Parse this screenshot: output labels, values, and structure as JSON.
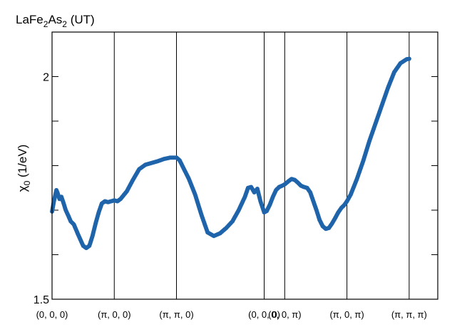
{
  "chart_data": {
    "type": "scatter",
    "title_main": "LaFe",
    "title_sub1": "2",
    "title_mid": "As",
    "title_sub2": "2",
    "title_tail": " (UT)",
    "ylabel_main": "χ",
    "ylabel_sub": "0",
    "ylabel_tail": " (1/eV)",
    "ylim": [
      1.5,
      2.1
    ],
    "yticks": [
      {
        "value": 1.5,
        "label": "1.5"
      },
      {
        "value": 1.6,
        "label": ""
      },
      {
        "value": 1.7,
        "label": ""
      },
      {
        "value": 1.8,
        "label": ""
      },
      {
        "value": 1.9,
        "label": ""
      },
      {
        "value": 2.0,
        "label": "2"
      }
    ],
    "xlim": [
      0,
      6.2
    ],
    "kpoints": [
      {
        "x": 0.0,
        "label": "(0, 0, 0)"
      },
      {
        "x": 1.0,
        "label": "(π, 0, 0)"
      },
      {
        "x": 2.0,
        "label": "(π, π, 0)"
      },
      {
        "x": 3.41,
        "label": "(0, 0, 0)"
      },
      {
        "x": 3.74,
        "label": "(0, 0, π)"
      },
      {
        "x": 4.74,
        "label": "(π, 0, π)"
      },
      {
        "x": 5.74,
        "label": "(π, π, π)"
      }
    ],
    "series": [
      {
        "color": "#1f64aa",
        "x": [
          0.0,
          0.03,
          0.07,
          0.09,
          0.12,
          0.15,
          0.18,
          0.22,
          0.26,
          0.3,
          0.35,
          0.42,
          0.5,
          0.55,
          0.6,
          0.65,
          0.7,
          0.75,
          0.8,
          0.85,
          0.9,
          0.95,
          1.0,
          1.05,
          1.1,
          1.2,
          1.3,
          1.4,
          1.5,
          1.6,
          1.7,
          1.8,
          1.9,
          2.0,
          2.05,
          2.1,
          2.2,
          2.3,
          2.4,
          2.5,
          2.6,
          2.7,
          2.8,
          2.9,
          3.0,
          3.1,
          3.15,
          3.2,
          3.25,
          3.3,
          3.35,
          3.41,
          3.45,
          3.5,
          3.55,
          3.6,
          3.65,
          3.7,
          3.74,
          3.8,
          3.85,
          3.9,
          3.95,
          4.0,
          4.05,
          4.1,
          4.15,
          4.2,
          4.25,
          4.3,
          4.35,
          4.4,
          4.45,
          4.5,
          4.55,
          4.6,
          4.65,
          4.7,
          4.74,
          4.8,
          4.9,
          5.0,
          5.1,
          5.2,
          5.3,
          5.4,
          5.5,
          5.6,
          5.7,
          5.74
        ],
        "y": [
          1.697,
          1.72,
          1.745,
          1.738,
          1.725,
          1.73,
          1.718,
          1.7,
          1.688,
          1.675,
          1.668,
          1.645,
          1.62,
          1.615,
          1.62,
          1.642,
          1.67,
          1.695,
          1.715,
          1.72,
          1.718,
          1.72,
          1.722,
          1.72,
          1.725,
          1.742,
          1.768,
          1.792,
          1.802,
          1.806,
          1.81,
          1.815,
          1.818,
          1.818,
          1.812,
          1.798,
          1.77,
          1.735,
          1.69,
          1.65,
          1.642,
          1.648,
          1.66,
          1.675,
          1.7,
          1.73,
          1.75,
          1.752,
          1.74,
          1.748,
          1.72,
          1.695,
          1.698,
          1.712,
          1.73,
          1.745,
          1.752,
          1.755,
          1.758,
          1.765,
          1.77,
          1.768,
          1.762,
          1.755,
          1.752,
          1.75,
          1.74,
          1.72,
          1.7,
          1.678,
          1.664,
          1.658,
          1.66,
          1.67,
          1.682,
          1.695,
          1.705,
          1.712,
          1.72,
          1.735,
          1.77,
          1.81,
          1.855,
          1.895,
          1.935,
          1.975,
          2.01,
          2.03,
          2.039,
          2.04
        ]
      }
    ],
    "grid": false,
    "legend": "none"
  }
}
